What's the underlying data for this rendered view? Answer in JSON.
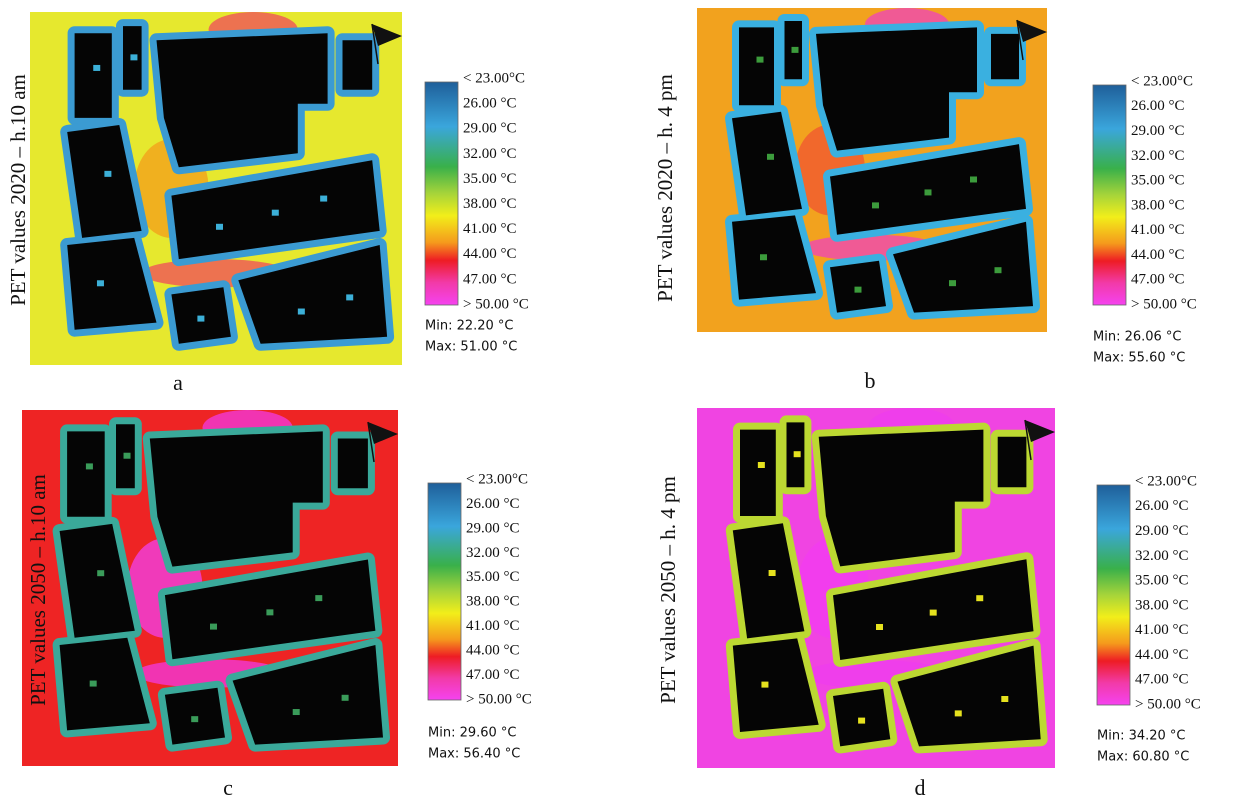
{
  "panels": [
    {
      "label": "PET values 2020 – h.10 am",
      "legend": [
        "< 23.00°C",
        "26.00 °C",
        "29.00 °C",
        "32.00 °C",
        "35.00 °C",
        "38.00 °C",
        "41.00 °C",
        "44.00 °C",
        "47.00 °C",
        "> 50.00 °C"
      ],
      "min": "Min: 22.20 °C",
      "max": "Max: 51.00 °C",
      "caption": "a"
    },
    {
      "label": "PET values 2020 – h. 4 pm",
      "legend": [
        "< 23.00°C",
        "26.00 °C",
        "29.00 °C",
        "32.00 °C",
        "35.00 °C",
        "38.00 °C",
        "41.00 °C",
        "44.00 °C",
        "47.00 °C",
        "> 50.00 °C"
      ],
      "min": "Min: 26.06 °C",
      "max": "Max: 55.60 °C",
      "caption": "b"
    },
    {
      "label": "PET values 2050 – h.10 am",
      "legend": [
        "< 23.00°C",
        "26.00 °C",
        "29.00 °C",
        "32.00 °C",
        "35.00 °C",
        "38.00 °C",
        "41.00 °C",
        "44.00 °C",
        "47.00 °C",
        "> 50.00 °C"
      ],
      "min": "Min: 29.60 °C",
      "max": "Max: 56.40 °C",
      "caption": "c"
    },
    {
      "label": "PET values 2050 – h. 4 pm",
      "legend": [
        "< 23.00°C",
        "26.00 °C",
        "29.00 °C",
        "32.00 °C",
        "35.00 °C",
        "38.00 °C",
        "41.00 °C",
        "44.00 °C",
        "47.00 °C",
        "> 50.00 °C"
      ],
      "min": "Min: 34.20 °C",
      "max": "Max: 60.80 °C",
      "caption": "d"
    }
  ]
}
